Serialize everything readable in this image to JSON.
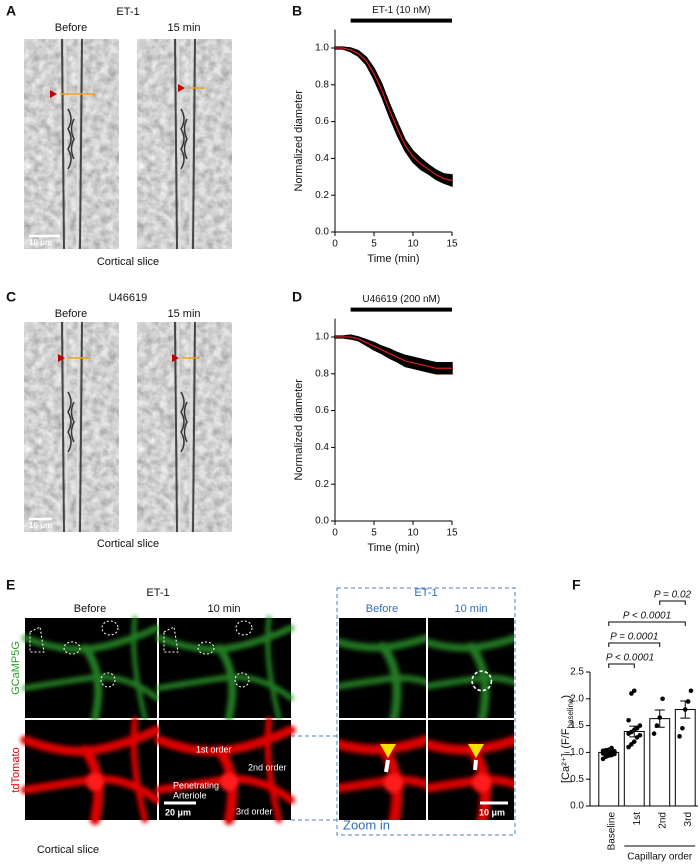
{
  "figure": {
    "A": {
      "label": "A",
      "title": "ET-1",
      "before": "Before",
      "after": "15 min",
      "scale_bar": "10 μm",
      "caption": "Cortical slice"
    },
    "C": {
      "label": "C",
      "title": "U46619",
      "before": "Before",
      "after": "15 min",
      "scale_bar": "10 μm",
      "caption": "Cortical slice"
    },
    "E": {
      "label": "E",
      "title": "ET-1",
      "before": "Before",
      "after": "10 min",
      "rows": [
        "GCaMP5G",
        "tdTomato"
      ],
      "first": "1st order",
      "second": "2nd order",
      "arteriole": [
        "Penetrating",
        "Arteriole"
      ],
      "third": "3rd order",
      "scale_bar": "20 μm",
      "caption": "Cortical slice",
      "zoom": {
        "title": "ET-1",
        "before": "Before",
        "after": "10 min",
        "label": "Zoom in",
        "scale_bar": "10 μm"
      }
    }
  },
  "chart_data": [
    {
      "type": "line",
      "panel": "B",
      "treatment": {
        "label": "ET-1 (10 nM)",
        "start": 2,
        "end": 15
      },
      "xlabel": "Time (min)",
      "ylabel": "Normalized diameter",
      "x": [
        0,
        1,
        2,
        3,
        4,
        5,
        6,
        7,
        8,
        9,
        10,
        11,
        12,
        13,
        14,
        15
      ],
      "series": [
        {
          "color": "#000000",
          "values": [
            1.0,
            1.0,
            0.99,
            0.97,
            0.93,
            0.86,
            0.77,
            0.66,
            0.56,
            0.47,
            0.41,
            0.37,
            0.34,
            0.31,
            0.29,
            0.28
          ],
          "errors": [
            0.005,
            0.005,
            0.01,
            0.015,
            0.02,
            0.03,
            0.035,
            0.035,
            0.035,
            0.03,
            0.03,
            0.03,
            0.025,
            0.025,
            0.025,
            0.03
          ]
        },
        {
          "color": "#e41a1c",
          "values": [
            1.0,
            1.0,
            0.99,
            0.97,
            0.93,
            0.86,
            0.77,
            0.66,
            0.56,
            0.47,
            0.41,
            0.37,
            0.34,
            0.31,
            0.29,
            0.28
          ]
        }
      ],
      "xlim": [
        0,
        15
      ],
      "xticks": [
        0,
        5,
        10,
        15
      ],
      "ylim": [
        0,
        1.1
      ],
      "yticks": [
        {
          "value": 0,
          "label": "0.0"
        },
        0.2,
        0.4,
        0.6,
        0.8,
        {
          "value": 1,
          "label": "1.0"
        }
      ]
    },
    {
      "type": "line",
      "panel": "D",
      "treatment": {
        "label": "U46619 (200 nM)",
        "start": 2,
        "end": 15
      },
      "xlabel": "Time (min)",
      "ylabel": "Normalized diameter",
      "x": [
        0,
        1,
        2,
        3,
        4,
        5,
        6,
        7,
        8,
        9,
        10,
        11,
        12,
        13,
        14,
        15
      ],
      "series": [
        {
          "color": "#000000",
          "values": [
            1.0,
            1.0,
            1.0,
            0.99,
            0.97,
            0.95,
            0.93,
            0.91,
            0.89,
            0.87,
            0.86,
            0.85,
            0.84,
            0.83,
            0.83,
            0.83
          ],
          "errors": [
            0.005,
            0.005,
            0.01,
            0.01,
            0.015,
            0.02,
            0.02,
            0.025,
            0.025,
            0.03,
            0.03,
            0.03,
            0.03,
            0.03,
            0.03,
            0.03
          ]
        },
        {
          "color": "#e41a1c",
          "values": [
            1.0,
            1.0,
            1.0,
            0.99,
            0.97,
            0.95,
            0.93,
            0.91,
            0.89,
            0.87,
            0.86,
            0.85,
            0.84,
            0.83,
            0.83,
            0.83
          ]
        }
      ],
      "xlim": [
        0,
        15
      ],
      "xticks": [
        0,
        5,
        10,
        15
      ],
      "ylim": [
        0,
        1.1
      ],
      "yticks": [
        {
          "value": 0,
          "label": "0.0"
        },
        0.2,
        0.4,
        0.6,
        0.8,
        {
          "value": 1,
          "label": "1.0"
        }
      ]
    },
    {
      "type": "bar",
      "panel": "F",
      "ylabel": {
        "main": "[Ca²⁺]ᵢ (F/F",
        "sub": "baseline",
        "end": ")"
      },
      "categories": [
        "Baseline",
        "1st",
        "2nd",
        "3rd"
      ],
      "values": [
        1.0,
        1.39,
        1.63,
        1.8
      ],
      "errors": [
        0.02,
        0.1,
        0.16,
        0.16
      ],
      "points": [
        [
          0.88,
          0.92,
          0.94,
          0.95,
          0.97,
          0.98,
          0.99,
          1.0,
          1.0,
          1.02,
          1.03,
          1.04,
          1.05,
          1.08
        ],
        [
          1.1,
          1.15,
          1.2,
          1.28,
          1.32,
          1.35,
          1.38,
          1.42,
          1.45,
          1.5,
          1.6,
          2.1,
          2.15
        ],
        [
          1.35,
          1.5,
          1.65,
          2.0
        ],
        [
          1.3,
          1.45,
          1.8,
          1.95,
          2.15
        ]
      ],
      "group": {
        "label": "Capillary order",
        "from": 1,
        "to": 3
      },
      "comparisons": [
        {
          "from": 0,
          "to": 1,
          "label": "P < 0.0001"
        },
        {
          "from": 0,
          "to": 2,
          "label": "P = 0.0001"
        },
        {
          "from": 0,
          "to": 3,
          "label": "P < 0.0001"
        },
        {
          "from": 2,
          "to": 3,
          "label": "P = 0.02"
        }
      ],
      "ylim": [
        0,
        2.5
      ],
      "yticks": [
        {
          "value": 0,
          "label": "0.0"
        },
        0.5,
        {
          "value": 1,
          "label": "1.0"
        },
        1.5,
        {
          "value": 2,
          "label": "2.0"
        },
        2.5
      ]
    }
  ]
}
